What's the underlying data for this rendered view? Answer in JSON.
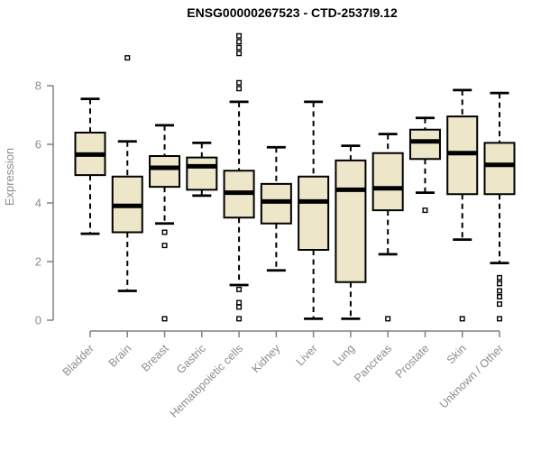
{
  "chart_data": {
    "type": "boxplot",
    "title": "ENSG00000267523 - CTD-2537I9.12",
    "ylabel": "Expression",
    "xlabel": "",
    "ylim": [
      0,
      8
    ],
    "yticks": [
      0,
      2,
      4,
      6,
      8
    ],
    "grid": false,
    "legend": "none",
    "categories": [
      "Bladder",
      "Brain",
      "Breast",
      "Gastric",
      "Hematopoietic cells",
      "Kidney",
      "Liver",
      "Lung",
      "Pancreas",
      "Prostate",
      "Skin",
      "Unknown / Other"
    ],
    "series": [
      {
        "name": "Bladder",
        "low": 2.95,
        "q1": 4.95,
        "median": 5.65,
        "q3": 6.4,
        "high": 7.55,
        "outliers": []
      },
      {
        "name": "Brain",
        "low": 1.0,
        "q1": 3.0,
        "median": 3.9,
        "q3": 4.9,
        "high": 6.1,
        "outliers": [
          8.95
        ]
      },
      {
        "name": "Breast",
        "low": 3.3,
        "q1": 4.55,
        "median": 5.2,
        "q3": 5.6,
        "high": 6.65,
        "outliers": [
          3.0,
          2.55,
          0.05
        ]
      },
      {
        "name": "Gastric",
        "low": 4.25,
        "q1": 4.45,
        "median": 5.25,
        "q3": 5.55,
        "high": 6.05,
        "outliers": []
      },
      {
        "name": "Hematopoietic cells",
        "low": 1.2,
        "q1": 3.5,
        "median": 4.35,
        "q3": 5.1,
        "high": 7.45,
        "outliers": [
          9.7,
          9.5,
          9.3,
          9.1,
          8.1,
          7.9,
          1.05,
          0.6,
          0.45,
          0.05
        ]
      },
      {
        "name": "Kidney",
        "low": 1.7,
        "q1": 3.3,
        "median": 4.05,
        "q3": 4.65,
        "high": 5.9,
        "outliers": []
      },
      {
        "name": "Liver",
        "low": 0.05,
        "q1": 2.4,
        "median": 4.05,
        "q3": 4.9,
        "high": 7.45,
        "outliers": []
      },
      {
        "name": "Lung",
        "low": 0.05,
        "q1": 1.3,
        "median": 4.45,
        "q3": 5.45,
        "high": 5.95,
        "outliers": []
      },
      {
        "name": "Pancreas",
        "low": 2.25,
        "q1": 3.75,
        "median": 4.5,
        "q3": 5.7,
        "high": 6.35,
        "outliers": [
          0.05
        ]
      },
      {
        "name": "Prostate",
        "low": 4.35,
        "q1": 5.5,
        "median": 6.1,
        "q3": 6.5,
        "high": 6.9,
        "outliers": [
          3.75
        ]
      },
      {
        "name": "Skin",
        "low": 2.75,
        "q1": 4.3,
        "median": 5.7,
        "q3": 6.95,
        "high": 7.85,
        "outliers": [
          0.05
        ]
      },
      {
        "name": "Unknown / Other",
        "low": 1.95,
        "q1": 4.3,
        "median": 5.3,
        "q3": 6.05,
        "high": 7.75,
        "outliers": [
          1.45,
          1.25,
          1.0,
          0.8,
          0.55,
          0.05
        ]
      }
    ],
    "colors": {
      "box_fill": "#EDE6C8",
      "box_stroke": "#000000",
      "median": "#000000",
      "axis": "#808080",
      "tick_label": "#8c8c8c",
      "title": "#000000",
      "background": "#ffffff"
    }
  }
}
